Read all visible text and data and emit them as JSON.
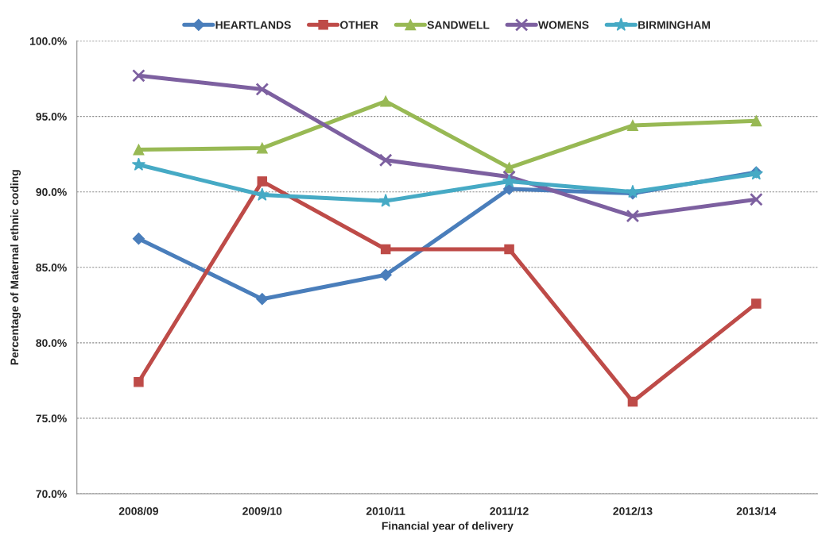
{
  "chart_data": {
    "type": "line",
    "xlabel": "Financial year of delivery",
    "ylabel": "Percentage of Maternal ethnic coding",
    "categories": [
      "2008/09",
      "2009/10",
      "2010/11",
      "2011/12",
      "2012/13",
      "2013/14"
    ],
    "series": [
      {
        "name": "HEARTLANDS",
        "color": "#4a7ebb",
        "marker": "diamond",
        "values": [
          86.9,
          82.9,
          84.5,
          90.2,
          89.9,
          91.3
        ]
      },
      {
        "name": "OTHER",
        "color": "#be4b48",
        "marker": "square",
        "values": [
          77.4,
          90.7,
          86.2,
          86.2,
          76.1,
          82.6
        ]
      },
      {
        "name": "SANDWELL",
        "color": "#98b954",
        "marker": "triangle",
        "values": [
          92.8,
          92.9,
          96.0,
          91.6,
          94.4,
          94.7
        ]
      },
      {
        "name": "WOMENS",
        "color": "#7d60a0",
        "marker": "cross",
        "values": [
          97.7,
          96.8,
          92.1,
          91.0,
          88.4,
          89.5
        ]
      },
      {
        "name": "BIRMINGHAM",
        "color": "#46aac5",
        "marker": "star",
        "values": [
          91.8,
          89.8,
          89.4,
          90.7,
          90.0,
          91.2
        ]
      }
    ],
    "ylim": [
      70,
      100
    ],
    "yticks": [
      {
        "value": 70,
        "label": "70.0%"
      },
      {
        "value": 75,
        "label": "75.0%"
      },
      {
        "value": 80,
        "label": "80.0%"
      },
      {
        "value": 85,
        "label": "85.0%"
      },
      {
        "value": 90,
        "label": "90.0%"
      },
      {
        "value": 95,
        "label": "95.0%"
      },
      {
        "value": 100,
        "label": "100.0%"
      }
    ],
    "grid": "y",
    "legend": "top",
    "line_style": "solid"
  }
}
